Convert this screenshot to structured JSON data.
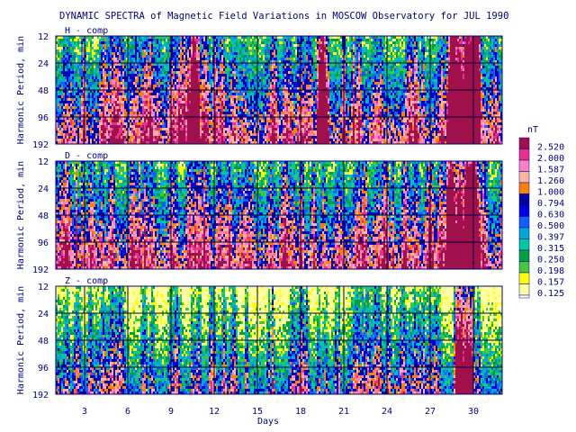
{
  "title": "DYNAMIC SPECTRA of Magnetic Field Variations in MOSCOW Observatory for JUL 1990",
  "colorbar": {
    "unit": "nT",
    "levels": [
      "2.520",
      "2.000",
      "1.587",
      "1.260",
      "1.000",
      "0.794",
      "0.630",
      "0.500",
      "0.397",
      "0.315",
      "0.250",
      "0.198",
      "0.157",
      "0.125"
    ],
    "colors": [
      "#a0104a",
      "#e8308c",
      "#ff80c0",
      "#ffb4a0",
      "#ff8000",
      "#0000a0",
      "#0000e0",
      "#1060ff",
      "#00a8d8",
      "#00c8a0",
      "#00a040",
      "#40c840",
      "#ffff00",
      "#ffffa0"
    ]
  },
  "chart_data": [
    {
      "type": "heatmap",
      "panel_label": "H - comp",
      "xlabel": "",
      "ylabel": "Harmonic Period, min",
      "x_ticks": [
        "3",
        "6",
        "9",
        "12",
        "15",
        "18",
        "21",
        "24",
        "27",
        "30"
      ],
      "y_ticks": [
        "12",
        "24",
        "48",
        "96",
        "192"
      ],
      "xlim": [
        1,
        32
      ],
      "y_scale": "log2",
      "ylim": [
        12,
        192
      ],
      "grid": true,
      "strong_activity_days": [
        10.5,
        19.5,
        28.5,
        29,
        29.5,
        30
      ]
    },
    {
      "type": "heatmap",
      "panel_label": "D - comp",
      "xlabel": "",
      "ylabel": "Harmonic Period, min",
      "x_ticks": [
        "3",
        "6",
        "9",
        "12",
        "15",
        "18",
        "21",
        "24",
        "27",
        "30"
      ],
      "y_ticks": [
        "12",
        "24",
        "48",
        "96",
        "192"
      ],
      "xlim": [
        1,
        32
      ],
      "y_scale": "log2",
      "ylim": [
        12,
        192
      ],
      "grid": true,
      "strong_activity_days": [
        28.5,
        29,
        29.5,
        30
      ]
    },
    {
      "type": "heatmap",
      "panel_label": "Z - comp",
      "xlabel": "Days",
      "ylabel": "Harmonic Period, min",
      "x_ticks": [
        "3",
        "6",
        "9",
        "12",
        "15",
        "18",
        "21",
        "24",
        "27",
        "30"
      ],
      "y_ticks": [
        "12",
        "24",
        "48",
        "96",
        "192"
      ],
      "xlim": [
        1,
        32
      ],
      "y_scale": "log2",
      "ylim": [
        12,
        192
      ],
      "grid": true,
      "strong_activity_days": [
        29,
        29.5
      ]
    }
  ]
}
